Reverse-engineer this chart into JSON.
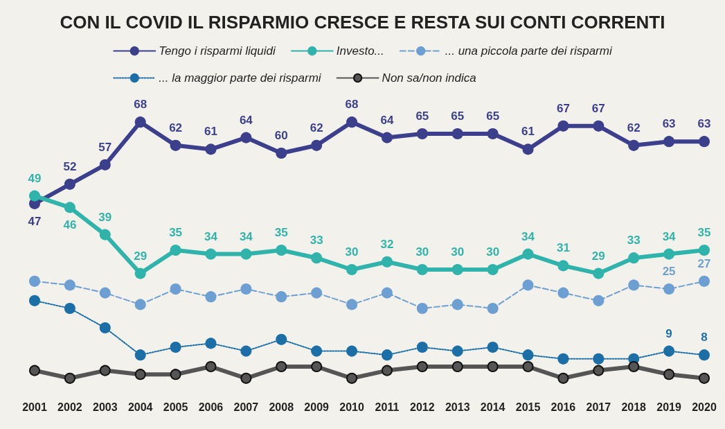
{
  "chart_data": {
    "type": "line",
    "title": "CON IL COVID IL RISPARMIO CRESCE E RESTA SUI CONTI CORRENTI",
    "categories": [
      "2001",
      "2002",
      "2003",
      "2004",
      "2005",
      "2006",
      "2007",
      "2008",
      "2009",
      "2010",
      "2011",
      "2012",
      "2013",
      "2014",
      "2015",
      "2016",
      "2017",
      "2018",
      "2019",
      "2020"
    ],
    "legend": "top",
    "marker": "circle",
    "series": [
      {
        "name": "Tengo i risparmi liquidi",
        "color": "#3b3f8c",
        "line_style": "solid",
        "values": [
          47,
          52,
          57,
          68,
          62,
          61,
          64,
          60,
          62,
          68,
          64,
          65,
          65,
          65,
          61,
          67,
          67,
          62,
          63,
          63
        ],
        "value_labels": [
          "47",
          "52",
          "57",
          "68",
          "62",
          "61",
          "64",
          "60",
          "62",
          "68",
          "64",
          "65",
          "65",
          "65",
          "61",
          "67",
          "67",
          "62",
          "63",
          "63"
        ]
      },
      {
        "name": "Investo...",
        "color": "#2fb3aa",
        "line_style": "solid",
        "values": [
          49,
          46,
          39,
          29,
          35,
          34,
          34,
          35,
          33,
          30,
          32,
          30,
          30,
          30,
          34,
          31,
          29,
          33,
          34,
          35
        ],
        "value_labels": [
          "49",
          "46",
          "39",
          "29",
          "35",
          "34",
          "34",
          "35",
          "33",
          "30",
          "32",
          "30",
          "30",
          "30",
          "34",
          "31",
          "29",
          "33",
          "34",
          "35"
        ]
      },
      {
        "name": "... una piccola parte dei risparmi",
        "color": "#6d9fd2",
        "line_style": "dashed",
        "values": [
          27,
          26,
          24,
          21,
          25,
          23,
          25,
          23,
          24,
          21,
          24,
          20,
          21,
          20,
          26,
          24,
          22,
          26,
          25,
          27
        ],
        "value_labels": [
          null,
          null,
          null,
          null,
          null,
          null,
          null,
          null,
          null,
          null,
          null,
          null,
          null,
          null,
          null,
          null,
          null,
          null,
          "25",
          "27"
        ]
      },
      {
        "name": "... la maggior parte dei risparmi",
        "color": "#1c6fa6",
        "line_style": "dotted",
        "values": [
          22,
          20,
          15,
          8,
          10,
          11,
          9,
          12,
          9,
          9,
          8,
          10,
          9,
          10,
          8,
          7,
          7,
          7,
          9,
          8
        ],
        "value_labels": [
          null,
          null,
          null,
          null,
          null,
          null,
          null,
          null,
          null,
          null,
          null,
          null,
          null,
          null,
          null,
          null,
          null,
          null,
          "9",
          "8"
        ]
      },
      {
        "name": "Non sa/non indica",
        "color": "#555555",
        "line_style": "solid",
        "values": [
          4,
          2,
          4,
          3,
          3,
          5,
          2,
          5,
          5,
          2,
          4,
          5,
          5,
          5,
          5,
          2,
          4,
          5,
          3,
          2
        ],
        "value_labels": [
          null,
          null,
          null,
          null,
          null,
          null,
          null,
          null,
          null,
          null,
          null,
          null,
          null,
          null,
          null,
          null,
          null,
          null,
          null,
          null
        ]
      }
    ]
  }
}
